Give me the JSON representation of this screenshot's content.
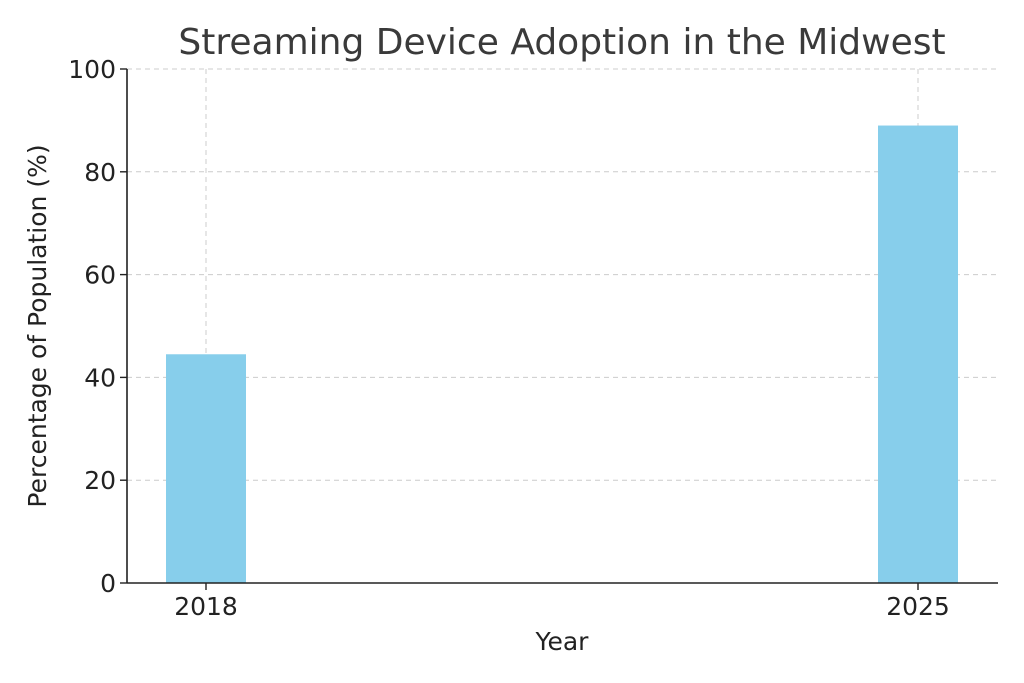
{
  "chart_data": {
    "type": "bar",
    "title": "Streaming Device Adoption in the Midwest",
    "xlabel": "Year",
    "ylabel": "Percentage of Population (%)",
    "categories": [
      "2018",
      "2025"
    ],
    "values": [
      44.5,
      89
    ],
    "ylim": [
      0,
      100
    ],
    "yticks": [
      "0",
      "20",
      "40",
      "60",
      "80",
      "100"
    ],
    "grid": true,
    "bar_color": "#87CEEB"
  }
}
